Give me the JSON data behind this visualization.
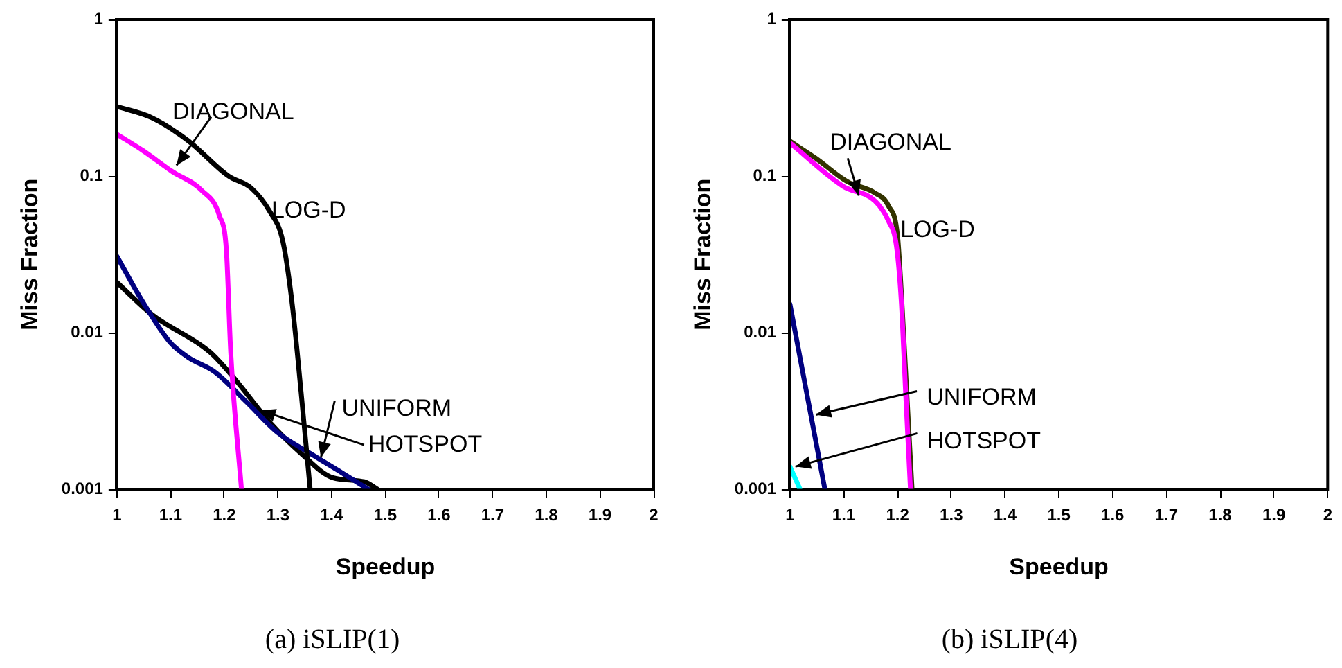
{
  "chart_data": [
    {
      "type": "line",
      "title": "(a) iSLIP(1)",
      "xlabel": "Speedup",
      "ylabel": "Miss Fraction",
      "log": "y",
      "grid": false,
      "legend": false,
      "marker": "none",
      "line_style": "solid",
      "xlim": [
        1,
        2
      ],
      "xticks": [
        1,
        1.1,
        1.2,
        1.3,
        1.4,
        1.5,
        1.6,
        1.7,
        1.8,
        1.9,
        2
      ],
      "ylim": [
        0.001,
        1
      ],
      "yticks": [
        0.001,
        0.01,
        0.1,
        1
      ],
      "series": [
        {
          "color": "#000000",
          "x": [
            1,
            1.065,
            1.132,
            1.208,
            1.25,
            1.284,
            1.309,
            1.326,
            1.343,
            1.36
          ],
          "values": [
            0.278,
            0.236,
            0.169,
            0.1,
            0.084,
            0.06,
            0.0385,
            0.0158,
            0.0042,
            0.001
          ]
        },
        {
          "color": "#ff00ff",
          "x": [
            1,
            1.048,
            1.103,
            1.158,
            1.191,
            1.204,
            1.212,
            1.232
          ],
          "values": [
            0.185,
            0.146,
            0.107,
            0.081,
            0.0557,
            0.0332,
            0.0075,
            0.001
          ]
        },
        {
          "color": "#000080",
          "x": [
            1,
            1.048,
            1.099,
            1.132,
            1.183,
            1.242,
            1.3,
            1.36,
            1.419,
            1.469
          ],
          "values": [
            0.0308,
            0.0158,
            0.0087,
            0.007,
            0.0056,
            0.0036,
            0.0023,
            0.0017,
            0.00128,
            0.001
          ]
        },
        {
          "color": "#000000",
          "x": [
            1,
            1.065,
            1.174,
            1.217,
            1.284,
            1.343,
            1.402,
            1.461,
            1.486
          ],
          "values": [
            0.021,
            0.0131,
            0.0075,
            0.0052,
            0.0027,
            0.0017,
            0.00119,
            0.00112,
            0.001
          ]
        }
      ],
      "annotations": [
        {
          "text": "DIAGONAL",
          "x": 1.111,
          "y": 0.117
        },
        {
          "text": "LOG-D",
          "x": 1.28,
          "y": 0.06
        },
        {
          "text": "UNIFORM",
          "x": 1.38,
          "y": 0.0016
        },
        {
          "text": "HOTSPOT",
          "x": 1.267,
          "y": 0.0032
        }
      ]
    },
    {
      "type": "line",
      "title": "(b) iSLIP(4)",
      "xlabel": "Speedup",
      "ylabel": "Miss Fraction",
      "log": "y",
      "grid": false,
      "legend": false,
      "marker": "none",
      "line_style": "solid",
      "xlim": [
        1,
        2
      ],
      "xticks": [
        1,
        1.1,
        1.2,
        1.3,
        1.4,
        1.5,
        1.6,
        1.7,
        1.8,
        1.9,
        2
      ],
      "ylim": [
        0.001,
        1
      ],
      "yticks": [
        0.001,
        0.01,
        0.1,
        1
      ],
      "series": [
        {
          "color": "#ff00ff",
          "x": [
            1,
            1.099,
            1.158,
            1.183,
            1.198,
            1.207,
            1.215,
            1.224
          ],
          "values": [
            0.163,
            0.086,
            0.0694,
            0.0518,
            0.0357,
            0.0158,
            0.0042,
            0.001
          ]
        },
        {
          "color": "#333300",
          "x": [
            1,
            1.048,
            1.107,
            1.158,
            1.183,
            1.2,
            1.208,
            1.217,
            1.227
          ],
          "values": [
            0.167,
            0.13,
            0.092,
            0.078,
            0.0646,
            0.0414,
            0.0158,
            0.0042,
            0.001
          ]
        },
        {
          "color": "#000080",
          "x": [
            1,
            1.065
          ],
          "values": [
            0.0152,
            0.001
          ]
        },
        {
          "color": "#00ffff",
          "x": [
            1,
            1.019
          ],
          "values": [
            0.0014,
            0.001
          ]
        }
      ],
      "annotations": [
        {
          "text": "DIAGONAL",
          "x": 1.128,
          "y": 0.075
        },
        {
          "text": "LOG-D",
          "x": 1.2,
          "y": 0.045
        },
        {
          "text": "UNIFORM",
          "x": 1.048,
          "y": 0.003
        },
        {
          "text": "HOTSPOT",
          "x": 1.01,
          "y": 0.0014
        }
      ]
    }
  ]
}
